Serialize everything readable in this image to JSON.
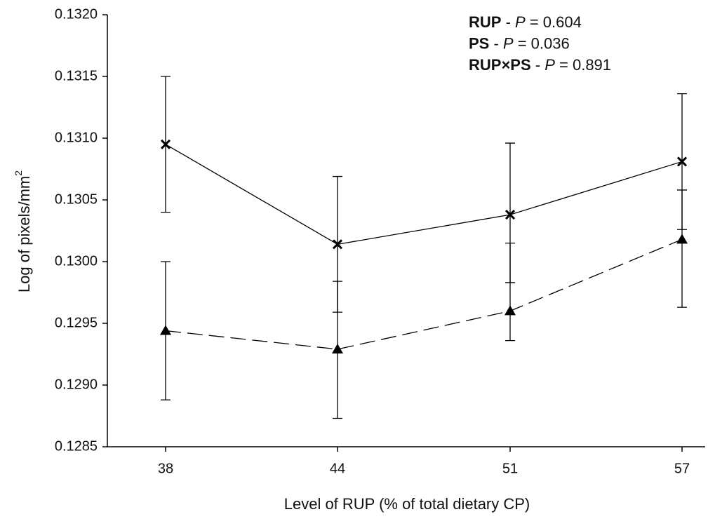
{
  "chart_data": {
    "type": "line",
    "x_label": "Level of RUP (% of total dietary CP)",
    "y_label": [
      "Log of pixels/mm",
      "2"
    ],
    "annotations": [
      [
        "RUP",
        " - ",
        "P",
        " = 0.604"
      ],
      [
        "PS",
        " - ",
        "P",
        " = 0.036"
      ],
      [
        "RUP×PS",
        " - ",
        "P",
        " = 0.891"
      ]
    ],
    "categories": [
      "38",
      "44",
      "51",
      "57"
    ],
    "ylim": [
      0.1285,
      0.132
    ],
    "yticks": [
      0.1285,
      {
        "value": 0.129,
        "label": "0.1290"
      },
      0.1295,
      {
        "value": 0.13,
        "label": "0.1300"
      },
      0.1305,
      {
        "value": 0.131,
        "label": "0.1310"
      },
      0.1315,
      {
        "value": 0.132,
        "label": "0.1320"
      }
    ],
    "series": [
      {
        "color": "#000000",
        "marker": "x",
        "dash": false,
        "values": [
          0.13095,
          0.13014,
          0.13038,
          0.13081
        ],
        "error_plus": [
          0.00055,
          0.00055,
          0.00058,
          0.00055
        ],
        "error_minus": [
          0.00055,
          0.00055,
          0.00055,
          0.00055
        ]
      },
      {
        "color": "#000000",
        "marker": "triangle",
        "dash": true,
        "values": [
          0.12944,
          0.12929,
          0.1296,
          0.13018
        ],
        "error_plus": [
          0.00056,
          0.00055,
          0.00055,
          0.0004
        ],
        "error_minus": [
          0.00056,
          0.00056,
          0.00024,
          0.00055
        ]
      }
    ]
  }
}
